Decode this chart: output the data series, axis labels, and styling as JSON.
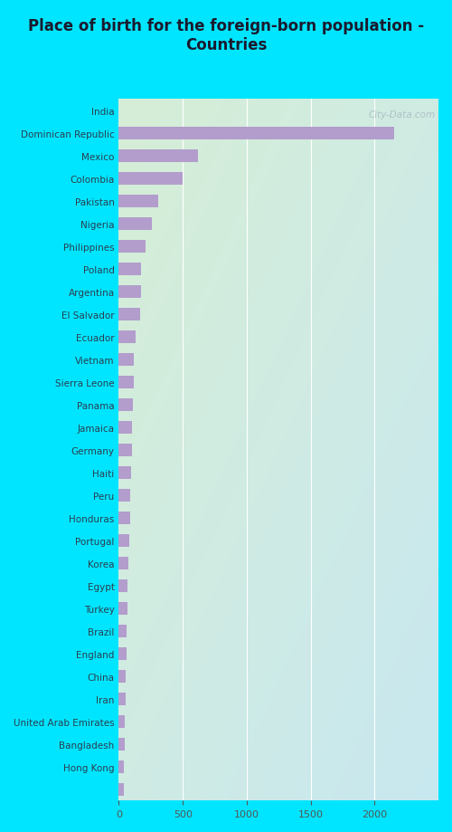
{
  "title": "Place of birth for the foreign-born population -\nCountries",
  "countries": [
    "India",
    "Dominican Republic",
    "Mexico",
    "Colombia",
    "Pakistan",
    "Nigeria",
    "Philippines",
    "Poland",
    "Argentina",
    "El Salvador",
    "Ecuador",
    "Vietnam",
    "Sierra Leone",
    "Panama",
    "Jamaica",
    "Germany",
    "Haiti",
    "Peru",
    "Honduras",
    "Portugal",
    "Korea",
    "Egypt",
    "Turkey",
    "Brazil",
    "England",
    "China",
    "Iran",
    "United Arab Emirates",
    "Bangladesh",
    "Hong Kong"
  ],
  "values": [
    2150,
    620,
    500,
    310,
    255,
    210,
    175,
    170,
    165,
    130,
    120,
    115,
    110,
    105,
    100,
    95,
    90,
    85,
    80,
    75,
    70,
    65,
    62,
    58,
    55,
    52,
    48,
    45,
    42,
    40
  ],
  "bar_color": "#b39dcc",
  "bg_color_outer": "#00e5ff",
  "plot_bg_top_left": "#d6eed6",
  "plot_bg_bottom_right": "#d6eaf0",
  "title_color": "#1a1a2e",
  "label_color": "#2c3e50",
  "tick_color": "#555555",
  "watermark": "City-Data.com",
  "xlim": [
    0,
    2500
  ],
  "xticks": [
    0,
    500,
    1000,
    1500,
    2000
  ],
  "grid_color": "#ffffff",
  "bar_height": 0.55
}
